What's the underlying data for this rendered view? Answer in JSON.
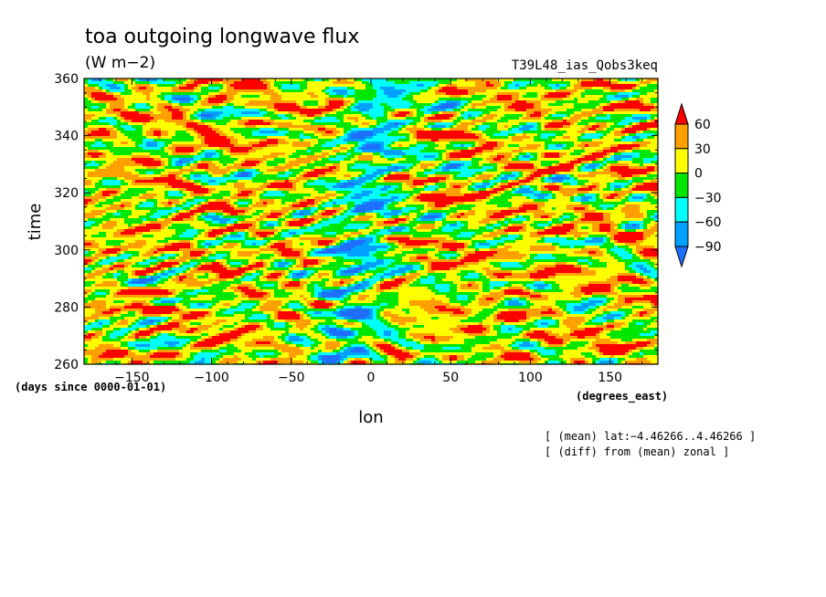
{
  "chart_data": {
    "type": "heatmap",
    "title": "toa outgoing longwave flux",
    "units": "(W m−2)",
    "run_label": "T39L48_ias_Qobs3keq",
    "xlabel": "lon",
    "ylabel": "time",
    "x_units": "(degrees_east)",
    "y_units": "(days since 0000-01-01)",
    "xlim": [
      -180,
      180
    ],
    "ylim": [
      260,
      360
    ],
    "x_ticks": [
      -150,
      -100,
      -50,
      0,
      50,
      100,
      150
    ],
    "x_tick_labels": [
      "−150",
      "−100",
      "−50",
      "0",
      "50",
      "100",
      "150"
    ],
    "y_ticks": [
      260,
      280,
      300,
      320,
      340,
      360
    ],
    "y_tick_labels": [
      "260",
      "280",
      "300",
      "320",
      "340",
      "360"
    ],
    "colorbar": {
      "levels": [
        -90,
        -60,
        -30,
        0,
        30,
        60
      ],
      "level_labels": [
        "−90",
        "−60",
        "−30",
        "0",
        "30",
        "60"
      ],
      "colors": [
        "#1e6eff",
        "#00a0ff",
        "#00ffff",
        "#00e600",
        "#ffff00",
        "#ffa000",
        "#ff0000"
      ],
      "extend": "both"
    },
    "notes": [
      "[ (mean) lat:−4.46266..4.46266 ]",
      "[ (diff) from (mean) zonal ]"
    ]
  }
}
